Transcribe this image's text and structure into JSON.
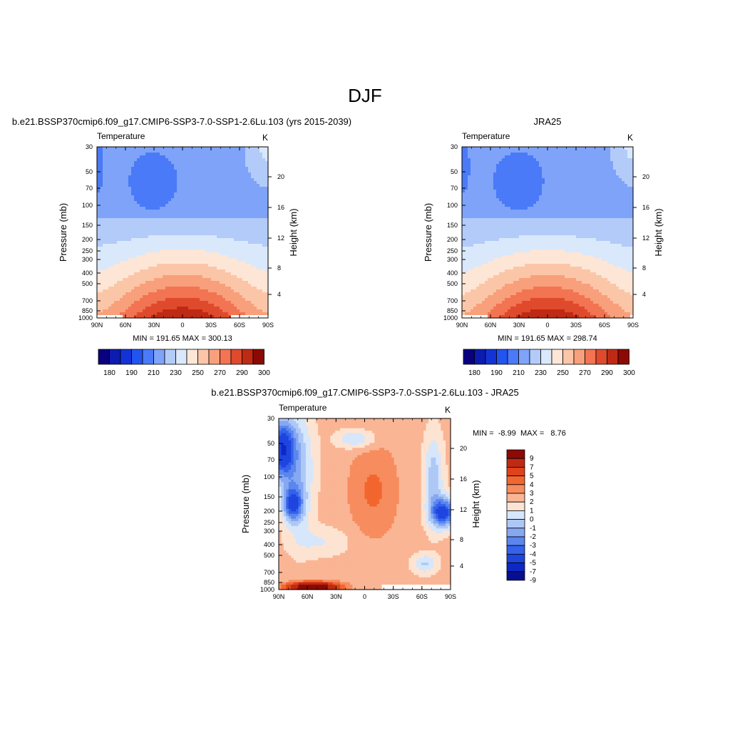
{
  "figure": {
    "title": "DJF"
  },
  "chart_data": [
    {
      "type": "heatmap",
      "subtitle": "b.e21.BSSP370cmip6.f09_g17.CMIP6-SSP3-7.0-SSP1-2.6Lu.103 (yrs 2015-2039)",
      "variable": "Temperature",
      "units": "K",
      "ylabel": "Pressure (mb)",
      "ylabel_right": "Height (km)",
      "x_ticks": [
        "90N",
        "60N",
        "30N",
        "0",
        "30S",
        "60S",
        "90S"
      ],
      "y_ticks": [
        "30",
        "50",
        "70",
        "100",
        "150",
        "200",
        "250",
        "300",
        "400",
        "500",
        "700",
        "850",
        "1000"
      ],
      "y_ticks_right": [
        "20",
        "16",
        "12",
        "8",
        "4"
      ],
      "stats": "MIN = 191.65  MAX = 300.13",
      "min": 191.65,
      "max": 300.13,
      "colorbar_labels": [
        "180",
        "190",
        "210",
        "230",
        "250",
        "270",
        "290",
        "300"
      ]
    },
    {
      "type": "heatmap",
      "subtitle": "JRA25",
      "variable": "Temperature",
      "units": "K",
      "ylabel": "Pressure (mb)",
      "ylabel_right": "Height (km)",
      "x_ticks": [
        "90N",
        "60N",
        "30N",
        "0",
        "30S",
        "60S",
        "90S"
      ],
      "y_ticks": [
        "30",
        "50",
        "70",
        "100",
        "150",
        "200",
        "250",
        "300",
        "400",
        "500",
        "700",
        "850",
        "1000"
      ],
      "y_ticks_right": [
        "20",
        "16",
        "12",
        "8",
        "4"
      ],
      "stats": "MIN = 191.65  MAX = 298.74",
      "min": 191.65,
      "max": 298.74,
      "colorbar_labels": [
        "180",
        "190",
        "210",
        "230",
        "250",
        "270",
        "290",
        "300"
      ]
    },
    {
      "type": "heatmap",
      "subtitle": "b.e21.BSSP370cmip6.f09_g17.CMIP6-SSP3-7.0-SSP1-2.6Lu.103 - JRA25",
      "variable": "Temperature",
      "units": "K",
      "ylabel": "Pressure (mb)",
      "ylabel_right": "Height (km)",
      "x_ticks": [
        "90N",
        "60N",
        "30N",
        "0",
        "30S",
        "60S",
        "90S"
      ],
      "y_ticks": [
        "30",
        "50",
        "70",
        "100",
        "150",
        "200",
        "250",
        "300",
        "400",
        "500",
        "700",
        "850",
        "1000"
      ],
      "y_ticks_right": [
        "20",
        "16",
        "12",
        "8",
        "4"
      ],
      "stats": "MIN =  -8.99  MAX =   8.76",
      "min": -8.99,
      "max": 8.76,
      "colorbar_labels": [
        "9",
        "7",
        "5",
        "4",
        "3",
        "2",
        "1",
        "0",
        "-1",
        "-2",
        "-3",
        "-4",
        "-5",
        "-7",
        "-9"
      ]
    }
  ],
  "colors": {
    "abs_scale": [
      "#08007f",
      "#0c1bb0",
      "#1433d6",
      "#2254f0",
      "#4a7af7",
      "#7ea3f8",
      "#b2cbf9",
      "#dae8fb",
      "#fde6d6",
      "#fbc6a8",
      "#f8a07b",
      "#f27452",
      "#e04a2c",
      "#bf2a14",
      "#8b0a05"
    ],
    "diff_scale": [
      "#8b0a05",
      "#bf2a14",
      "#e0421c",
      "#f2662f",
      "#f78c5e",
      "#fab595",
      "#fde4d2",
      "#d6e6fb",
      "#aec8f6",
      "#86a8f2",
      "#5a86ee",
      "#3562ea",
      "#1e45e0",
      "#0d28c4",
      "#06108f"
    ]
  }
}
